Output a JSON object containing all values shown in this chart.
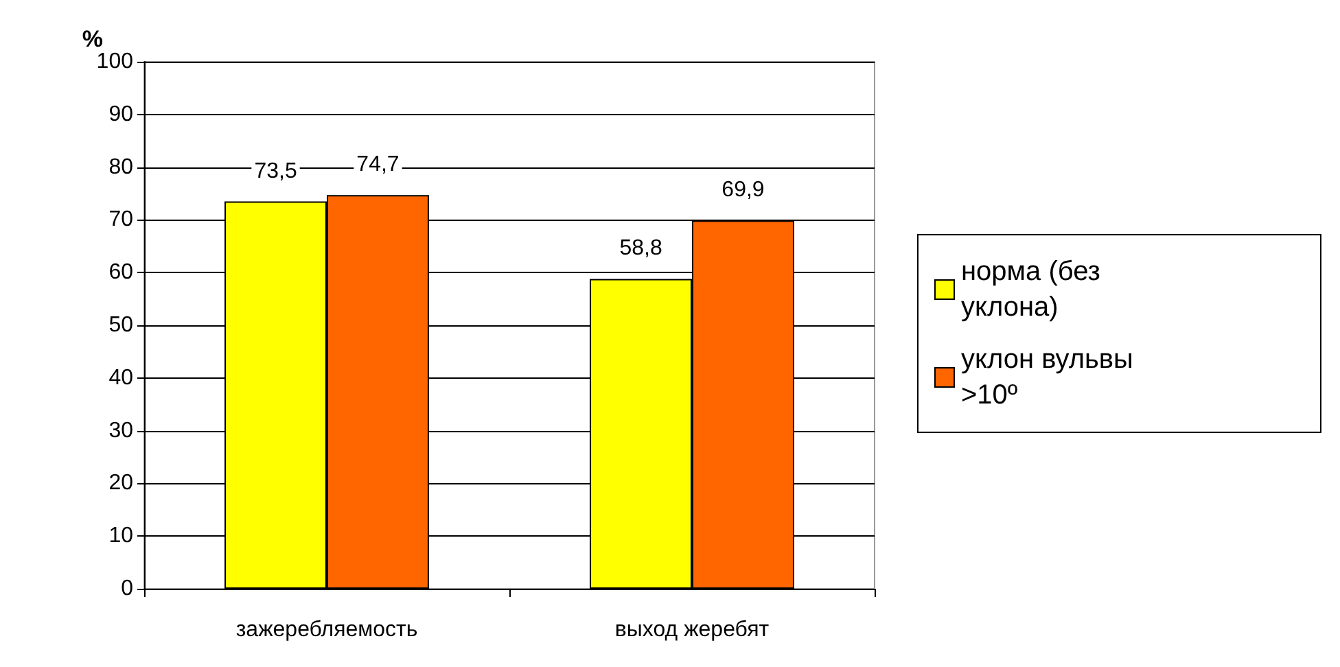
{
  "chart_data": {
    "type": "bar",
    "ylabel": "%",
    "categories": [
      "зажеребляемость",
      "выход жеребят"
    ],
    "series": [
      {
        "name": "норма (без уклона)",
        "color": "#ffff00",
        "values": [
          73.5,
          58.8
        ],
        "value_labels": [
          "73,5",
          "58,8"
        ]
      },
      {
        "name": "уклон вульвы >10º",
        "color": "#ff6600",
        "values": [
          74.7,
          69.9
        ],
        "value_labels": [
          "74,7",
          "69,9"
        ]
      }
    ],
    "ylim": [
      0,
      100
    ],
    "yticks": [
      0,
      10,
      20,
      30,
      40,
      50,
      60,
      70,
      80,
      90,
      100
    ],
    "grid": "y",
    "legend": "right"
  }
}
